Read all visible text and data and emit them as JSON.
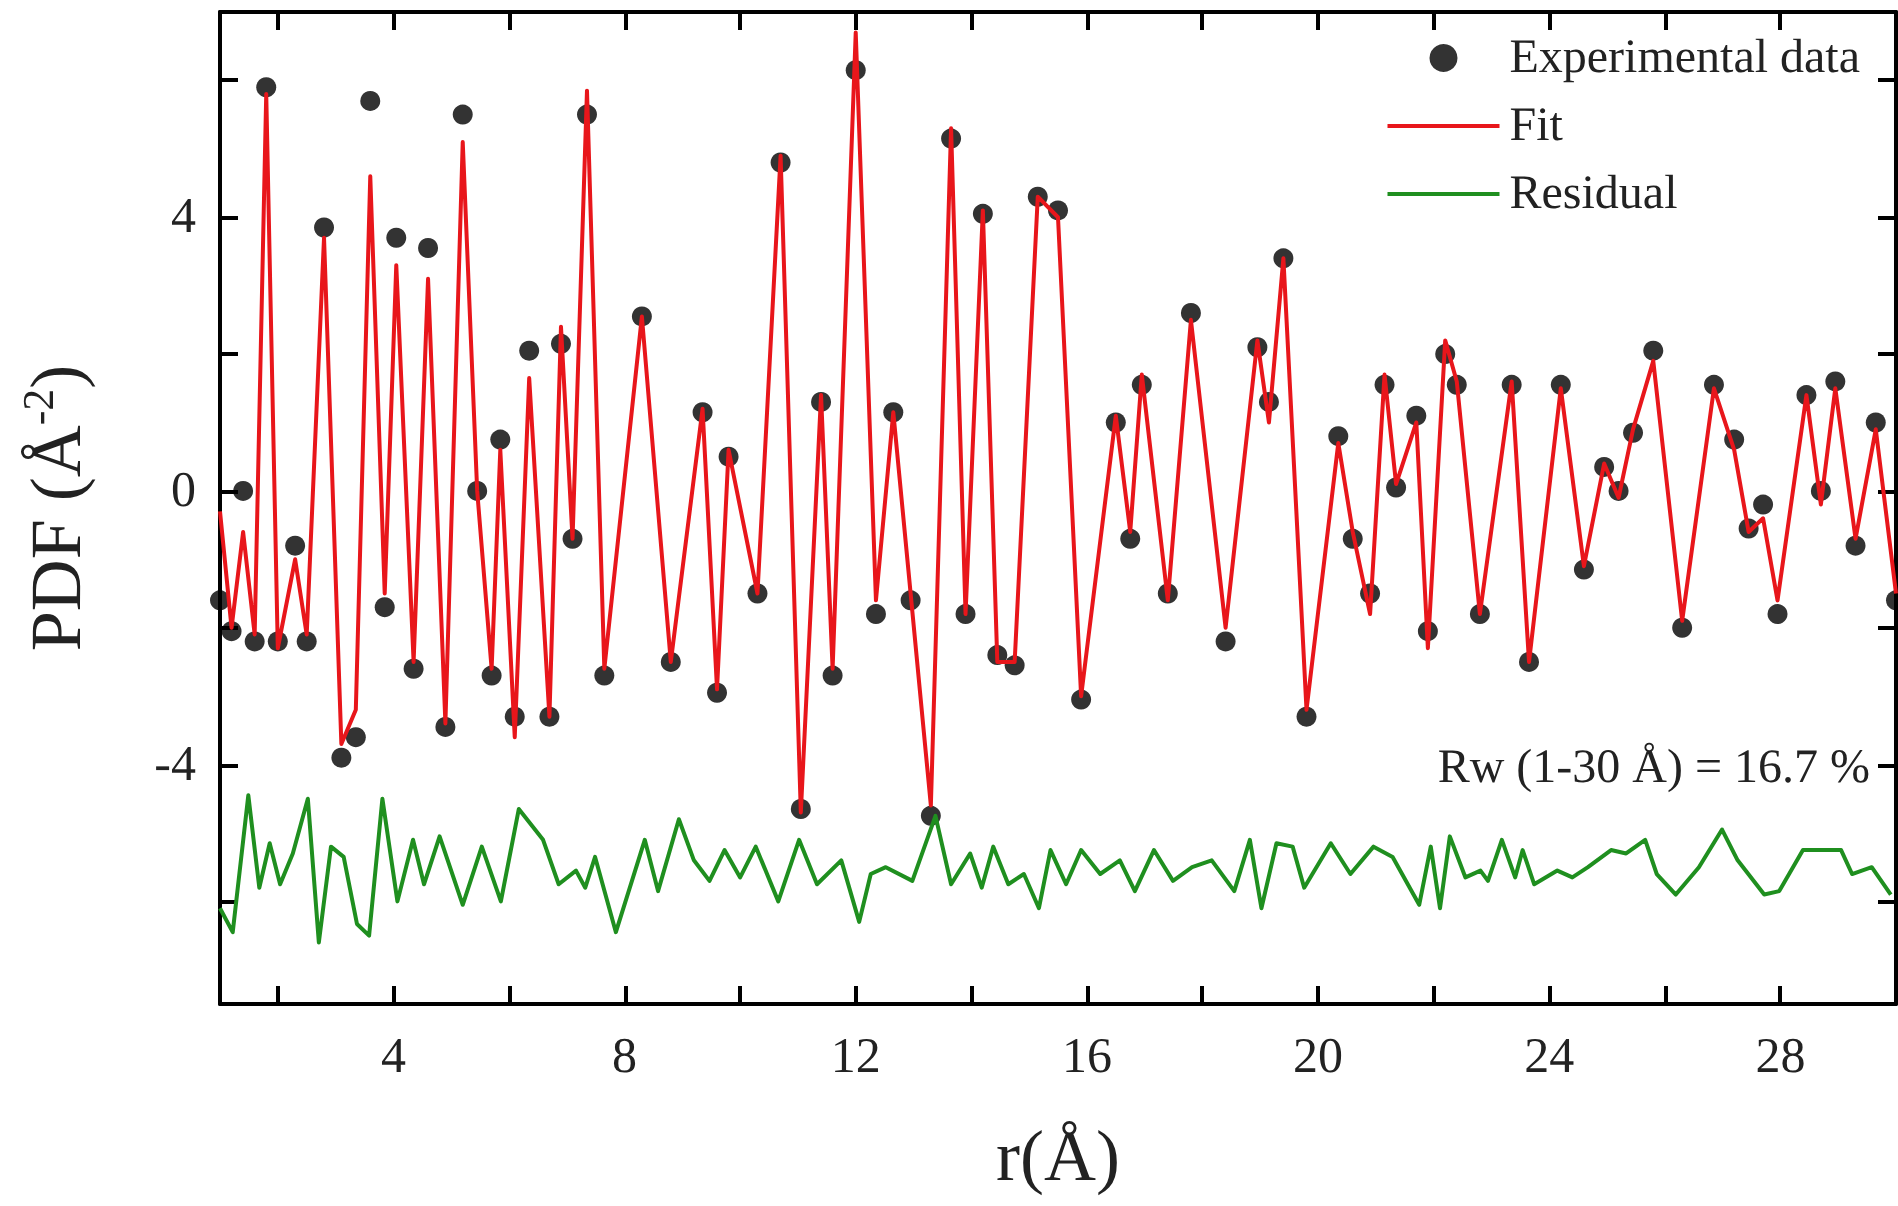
{
  "chart_data": {
    "type": "line",
    "xlabel": "r(Å)",
    "ylabel": "PDF (Å$^{-2}$)",
    "annotations": [
      "Rw (1-30 Å) = 16.7 %"
    ],
    "xlim": [
      1,
      30
    ],
    "xticks": [
      {
        "value": 2,
        "label": null
      },
      4,
      {
        "value": 6,
        "label": null
      },
      8,
      {
        "value": 10,
        "label": null
      },
      12,
      {
        "value": 14,
        "label": null
      },
      16,
      {
        "value": 18,
        "label": null
      },
      20,
      {
        "value": 22,
        "label": null
      },
      24,
      {
        "value": 26,
        "label": null
      },
      28,
      {
        "value": 30,
        "label": null
      }
    ],
    "ylim": [
      -7.5,
      7
    ],
    "yticks": [
      {
        "value": -6,
        "label": null
      },
      -4,
      {
        "value": -2,
        "label": null
      },
      0,
      {
        "value": 2,
        "label": null
      },
      4,
      {
        "value": 6,
        "label": null
      }
    ],
    "grid": false,
    "legend": "top right",
    "series": [
      {
        "name": "Experimental data",
        "type": "scatter",
        "marker": "circle",
        "color": "#000000",
        "x": [
          1.0,
          1.2,
          1.4,
          1.6,
          1.8,
          2.0,
          2.3,
          2.5,
          2.8,
          3.1,
          3.35,
          3.6,
          3.85,
          4.05,
          4.35,
          4.6,
          4.9,
          5.2,
          5.45,
          5.7,
          5.85,
          6.1,
          6.35,
          6.7,
          6.9,
          7.1,
          7.35,
          7.65,
          8.3,
          8.8,
          9.35,
          9.6,
          9.8,
          10.3,
          10.7,
          11.05,
          11.4,
          11.6,
          12.0,
          12.35,
          12.65,
          12.95,
          13.3,
          13.65,
          13.9,
          14.2,
          14.45,
          14.75,
          15.15,
          15.5,
          15.9,
          16.5,
          16.75,
          16.95,
          17.4,
          17.8,
          18.4,
          18.95,
          19.15,
          19.4,
          19.8,
          20.35,
          20.6,
          20.9,
          21.15,
          21.35,
          21.7,
          21.9,
          22.2,
          22.4,
          22.8,
          23.35,
          23.65,
          24.2,
          24.6,
          24.95,
          25.2,
          25.45,
          25.8,
          26.3,
          26.85,
          27.2,
          27.45,
          27.7,
          27.95,
          28.45,
          28.7,
          28.95,
          29.3,
          29.65,
          30.0
        ],
        "values": [
          -1.6,
          -2.05,
          0.0,
          -2.2,
          5.9,
          -2.2,
          -0.8,
          -2.2,
          3.85,
          -3.9,
          -3.6,
          5.7,
          -1.7,
          3.7,
          -2.6,
          3.55,
          -3.45,
          5.5,
          0.0,
          -2.7,
          0.75,
          -3.3,
          2.05,
          -3.3,
          2.15,
          -0.7,
          5.5,
          -2.7,
          2.55,
          -2.5,
          1.15,
          -2.95,
          0.5,
          -1.5,
          4.8,
          -4.65,
          1.3,
          -2.7,
          6.15,
          -1.8,
          1.15,
          -1.6,
          -4.75,
          5.15,
          -1.8,
          4.05,
          -2.4,
          -2.55,
          4.3,
          4.1,
          -3.05,
          1.0,
          -0.7,
          1.55,
          -1.5,
          2.6,
          -2.2,
          2.1,
          1.3,
          3.4,
          -3.3,
          0.8,
          -0.7,
          -1.5,
          1.55,
          0.05,
          1.1,
          -2.05,
          2.0,
          1.55,
          -1.8,
          1.55,
          -2.5,
          1.55,
          -1.15,
          0.35,
          0.0,
          0.85,
          2.05,
          -2.0,
          1.55,
          0.75,
          -0.55,
          -0.2,
          -1.8,
          1.4,
          0.0,
          1.6,
          -0.8,
          1.0,
          -1.6
        ]
      },
      {
        "name": "Fit",
        "color": "#e8161b",
        "x": [
          1.0,
          1.2,
          1.4,
          1.6,
          1.8,
          2.0,
          2.3,
          2.5,
          2.8,
          3.1,
          3.35,
          3.6,
          3.85,
          4.05,
          4.35,
          4.6,
          4.9,
          5.2,
          5.45,
          5.7,
          5.85,
          6.1,
          6.35,
          6.7,
          6.9,
          7.1,
          7.35,
          7.65,
          8.3,
          8.8,
          9.35,
          9.6,
          9.8,
          10.3,
          10.7,
          11.05,
          11.4,
          11.6,
          12.0,
          12.35,
          12.65,
          12.95,
          13.3,
          13.65,
          13.9,
          14.2,
          14.45,
          14.75,
          15.15,
          15.5,
          15.9,
          16.5,
          16.75,
          16.95,
          17.4,
          17.8,
          18.4,
          18.95,
          19.15,
          19.4,
          19.8,
          20.35,
          20.6,
          20.9,
          21.15,
          21.35,
          21.7,
          21.9,
          22.2,
          22.4,
          22.8,
          23.35,
          23.65,
          24.2,
          24.6,
          24.95,
          25.2,
          25.45,
          25.8,
          26.3,
          26.85,
          27.2,
          27.45,
          27.7,
          27.95,
          28.45,
          28.7,
          28.95,
          29.3,
          29.65,
          30.0
        ],
        "values": [
          -0.3,
          -2.0,
          -0.6,
          -2.1,
          5.8,
          -2.3,
          -1.0,
          -2.1,
          3.7,
          -3.7,
          -3.2,
          4.6,
          -1.5,
          3.3,
          -2.5,
          3.1,
          -3.4,
          5.1,
          0.0,
          -2.6,
          0.6,
          -3.6,
          1.65,
          -3.3,
          2.4,
          -0.7,
          5.85,
          -2.6,
          2.55,
          -2.5,
          1.2,
          -2.9,
          0.6,
          -1.5,
          4.9,
          -4.7,
          1.4,
          -2.6,
          6.7,
          -1.6,
          1.15,
          -1.5,
          -4.6,
          5.3,
          -1.8,
          4.1,
          -2.5,
          -2.5,
          4.3,
          4.0,
          -3.0,
          1.1,
          -0.6,
          1.7,
          -1.6,
          2.5,
          -2.0,
          2.2,
          1.0,
          3.4,
          -3.2,
          0.7,
          -0.6,
          -1.8,
          1.7,
          0.1,
          1.0,
          -2.3,
          2.2,
          1.6,
          -1.8,
          1.6,
          -2.5,
          1.5,
          -1.1,
          0.4,
          -0.1,
          0.9,
          1.9,
          -1.9,
          1.5,
          0.6,
          -0.6,
          -0.4,
          -1.6,
          1.4,
          -0.2,
          1.5,
          -0.7,
          0.9,
          -1.5
        ]
      },
      {
        "name": "Residual",
        "color": "#1f8f1f",
        "x": [
          1.0,
          1.22,
          1.49,
          1.68,
          1.86,
          2.04,
          2.26,
          2.52,
          2.71,
          2.92,
          3.14,
          3.37,
          3.58,
          3.81,
          4.07,
          4.34,
          4.53,
          4.8,
          5.2,
          5.53,
          5.86,
          6.17,
          6.59,
          6.86,
          7.16,
          7.32,
          7.49,
          7.85,
          8.35,
          8.58,
          8.94,
          9.2,
          9.47,
          9.73,
          10.0,
          10.27,
          10.66,
          11.02,
          11.33,
          11.75,
          12.06,
          12.26,
          12.52,
          12.98,
          13.38,
          13.65,
          13.98,
          14.18,
          14.38,
          14.64,
          14.91,
          15.17,
          15.37,
          15.64,
          15.9,
          16.23,
          16.57,
          16.83,
          17.16,
          17.49,
          17.82,
          18.16,
          18.55,
          18.82,
          19.02,
          19.28,
          19.56,
          19.76,
          20.22,
          20.56,
          20.96,
          21.29,
          21.75,
          21.95,
          22.11,
          22.28,
          22.55,
          22.81,
          22.94,
          23.18,
          23.41,
          23.54,
          23.74,
          24.14,
          24.4,
          24.67,
          25.07,
          25.33,
          25.66,
          25.86,
          26.19,
          26.59,
          26.99,
          27.26,
          27.72,
          27.98,
          28.39,
          29.05,
          29.24,
          29.58,
          29.91
        ],
        "values": [
          -6.1,
          -6.45,
          -4.45,
          -5.8,
          -5.15,
          -5.75,
          -5.3,
          -4.5,
          -6.6,
          -5.2,
          -5.35,
          -6.33,
          -6.5,
          -4.5,
          -6.0,
          -5.1,
          -5.75,
          -5.05,
          -6.05,
          -5.2,
          -6.0,
          -4.65,
          -5.1,
          -5.75,
          -5.55,
          -5.8,
          -5.35,
          -6.45,
          -5.1,
          -5.85,
          -4.8,
          -5.4,
          -5.7,
          -5.25,
          -5.65,
          -5.2,
          -6.0,
          -5.1,
          -5.75,
          -5.4,
          -6.3,
          -5.6,
          -5.5,
          -5.7,
          -4.75,
          -5.75,
          -5.3,
          -5.8,
          -5.2,
          -5.75,
          -5.6,
          -6.1,
          -5.25,
          -5.75,
          -5.25,
          -5.6,
          -5.4,
          -5.85,
          -5.25,
          -5.7,
          -5.5,
          -5.4,
          -5.85,
          -5.1,
          -6.1,
          -5.15,
          -5.2,
          -5.8,
          -5.15,
          -5.6,
          -5.2,
          -5.35,
          -6.05,
          -5.2,
          -6.1,
          -5.05,
          -5.65,
          -5.55,
          -5.7,
          -5.1,
          -5.65,
          -5.25,
          -5.75,
          -5.55,
          -5.65,
          -5.5,
          -5.25,
          -5.3,
          -5.1,
          -5.6,
          -5.9,
          -5.5,
          -4.95,
          -5.4,
          -5.9,
          -5.85,
          -5.25,
          -5.25,
          -5.6,
          -5.5,
          -5.9
        ]
      }
    ]
  }
}
